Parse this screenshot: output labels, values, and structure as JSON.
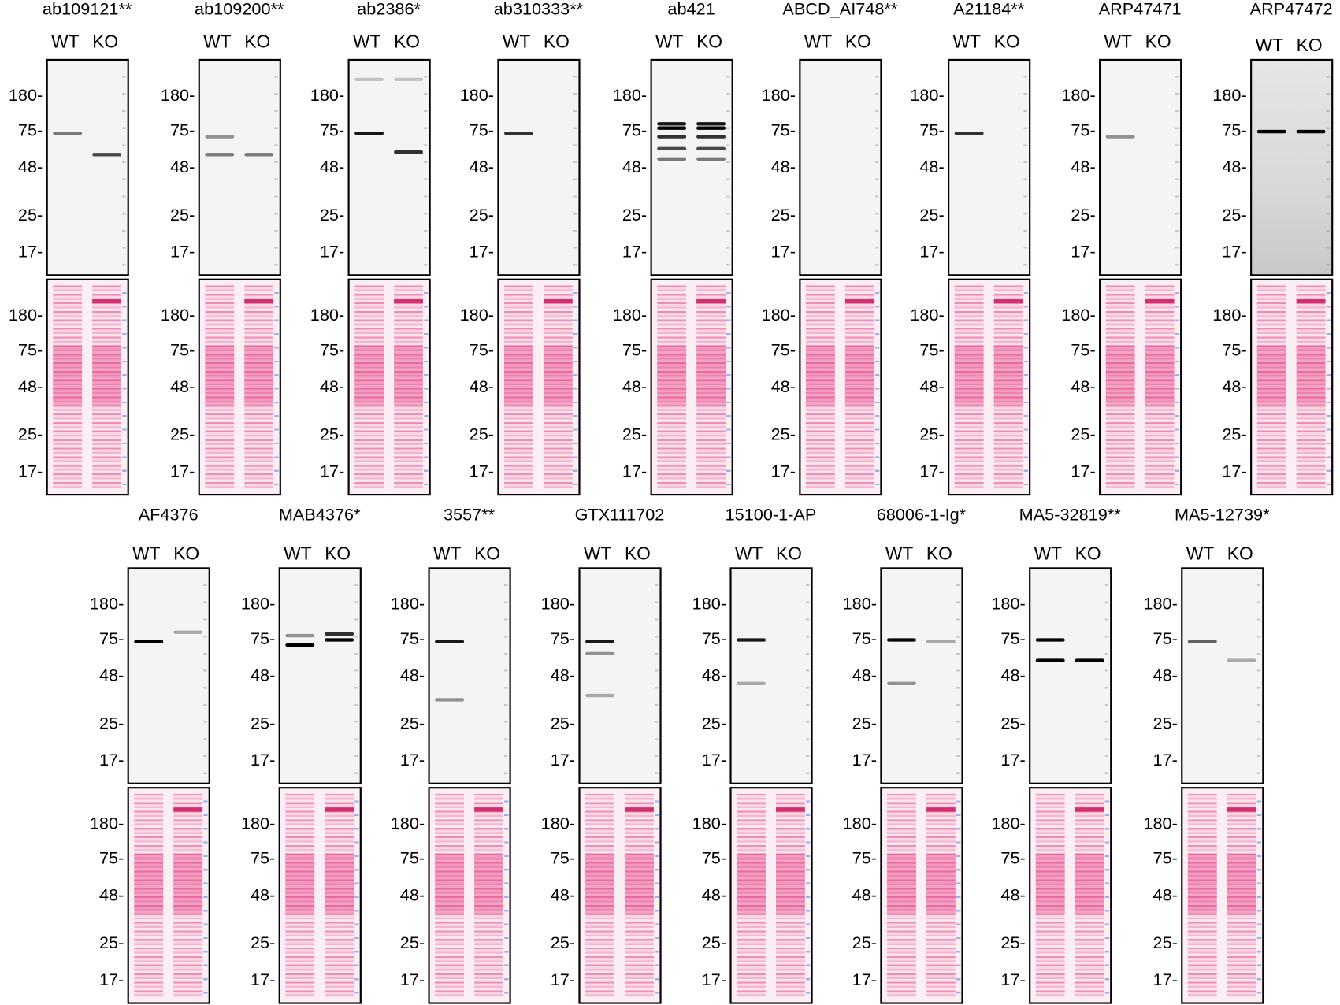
{
  "lane_labels": {
    "wt": "WT",
    "ko": "KO"
  },
  "markers": [
    "180",
    "75",
    "48",
    "25",
    "17"
  ],
  "colors": {
    "ponceau": "#e0307a",
    "band": "#000000"
  },
  "rows": [
    {
      "panels": [
        {
          "name": "ab109121**",
          "bands": [
            {
              "lane": "WT",
              "kDa": 75,
              "intensity": 0.5
            },
            {
              "lane": "KO",
              "kDa": 58,
              "intensity": 0.7
            }
          ]
        },
        {
          "name": "ab109200**",
          "bands": [
            {
              "lane": "WT",
              "kDa": 72,
              "intensity": 0.4
            },
            {
              "lane": "WT",
              "kDa": 58,
              "intensity": 0.5
            },
            {
              "lane": "KO",
              "kDa": 58,
              "intensity": 0.5
            }
          ]
        },
        {
          "name": "ab2386*",
          "bands": [
            {
              "lane": "WT",
              "kDa": 75,
              "intensity": 0.9
            },
            {
              "lane": "KO",
              "kDa": 60,
              "intensity": 0.8
            },
            {
              "lane": "WT",
              "kDa": 220,
              "intensity": 0.2
            },
            {
              "lane": "KO",
              "kDa": 220,
              "intensity": 0.2
            }
          ]
        },
        {
          "name": "ab310333**",
          "bands": [
            {
              "lane": "WT",
              "kDa": 75,
              "intensity": 0.8
            }
          ]
        },
        {
          "name": "ab421",
          "bands": [
            {
              "lane": "WT",
              "kDa": 95,
              "intensity": 0.9
            },
            {
              "lane": "WT",
              "kDa": 85,
              "intensity": 1
            },
            {
              "lane": "WT",
              "kDa": 72,
              "intensity": 0.8
            },
            {
              "lane": "WT",
              "kDa": 62,
              "intensity": 0.7
            },
            {
              "lane": "WT",
              "kDa": 55,
              "intensity": 0.5
            },
            {
              "lane": "KO",
              "kDa": 95,
              "intensity": 0.9
            },
            {
              "lane": "KO",
              "kDa": 85,
              "intensity": 1
            },
            {
              "lane": "KO",
              "kDa": 72,
              "intensity": 0.8
            },
            {
              "lane": "KO",
              "kDa": 62,
              "intensity": 0.7
            },
            {
              "lane": "KO",
              "kDa": 55,
              "intensity": 0.5
            }
          ]
        },
        {
          "name": "ABCD_AI748**",
          "bands": []
        },
        {
          "name": "A21184**",
          "bands": [
            {
              "lane": "WT",
              "kDa": 75,
              "intensity": 0.8
            }
          ]
        },
        {
          "name": "ARP47471",
          "bands": [
            {
              "lane": "WT",
              "kDa": 72,
              "intensity": 0.4
            }
          ]
        },
        {
          "name": "ARP47472",
          "dark": true,
          "bands": [
            {
              "lane": "WT",
              "kDa": 78,
              "intensity": 1
            },
            {
              "lane": "KO",
              "kDa": 78,
              "intensity": 1
            }
          ]
        }
      ]
    },
    {
      "panels": [
        {
          "name": "AF4376",
          "bands": [
            {
              "lane": "WT",
              "kDa": 75,
              "intensity": 1
            },
            {
              "lane": "KO",
              "kDa": 95,
              "intensity": 0.3
            }
          ]
        },
        {
          "name": "MAB4376*",
          "bands": [
            {
              "lane": "WT",
              "kDa": 72,
              "intensity": 1
            },
            {
              "lane": "WT",
              "kDa": 88,
              "intensity": 0.4
            },
            {
              "lane": "KO",
              "kDa": 78,
              "intensity": 1
            },
            {
              "lane": "KO",
              "kDa": 90,
              "intensity": 0.8
            }
          ]
        },
        {
          "name": "3557**",
          "bands": [
            {
              "lane": "WT",
              "kDa": 75,
              "intensity": 0.9
            },
            {
              "lane": "WT",
              "kDa": 36,
              "intensity": 0.4
            }
          ]
        },
        {
          "name": "GTX111702",
          "bands": [
            {
              "lane": "WT",
              "kDa": 75,
              "intensity": 0.9
            },
            {
              "lane": "WT",
              "kDa": 65,
              "intensity": 0.4
            },
            {
              "lane": "WT",
              "kDa": 38,
              "intensity": 0.3
            }
          ]
        },
        {
          "name": "15100-1-AP",
          "bands": [
            {
              "lane": "WT",
              "kDa": 78,
              "intensity": 0.9
            },
            {
              "lane": "WT",
              "kDa": 45,
              "intensity": 0.3
            }
          ]
        },
        {
          "name": "68006-1-Ig*",
          "bands": [
            {
              "lane": "WT",
              "kDa": 78,
              "intensity": 1
            },
            {
              "lane": "WT",
              "kDa": 45,
              "intensity": 0.4
            },
            {
              "lane": "KO",
              "kDa": 75,
              "intensity": 0.3
            }
          ]
        },
        {
          "name": "MA5-32819**",
          "bands": [
            {
              "lane": "WT",
              "kDa": 78,
              "intensity": 1
            },
            {
              "lane": "WT",
              "kDa": 60,
              "intensity": 1
            },
            {
              "lane": "KO",
              "kDa": 60,
              "intensity": 1
            }
          ]
        },
        {
          "name": "MA5-12739*",
          "bands": [
            {
              "lane": "WT",
              "kDa": 75,
              "intensity": 0.6
            },
            {
              "lane": "KO",
              "kDa": 60,
              "intensity": 0.3
            }
          ]
        }
      ]
    }
  ]
}
